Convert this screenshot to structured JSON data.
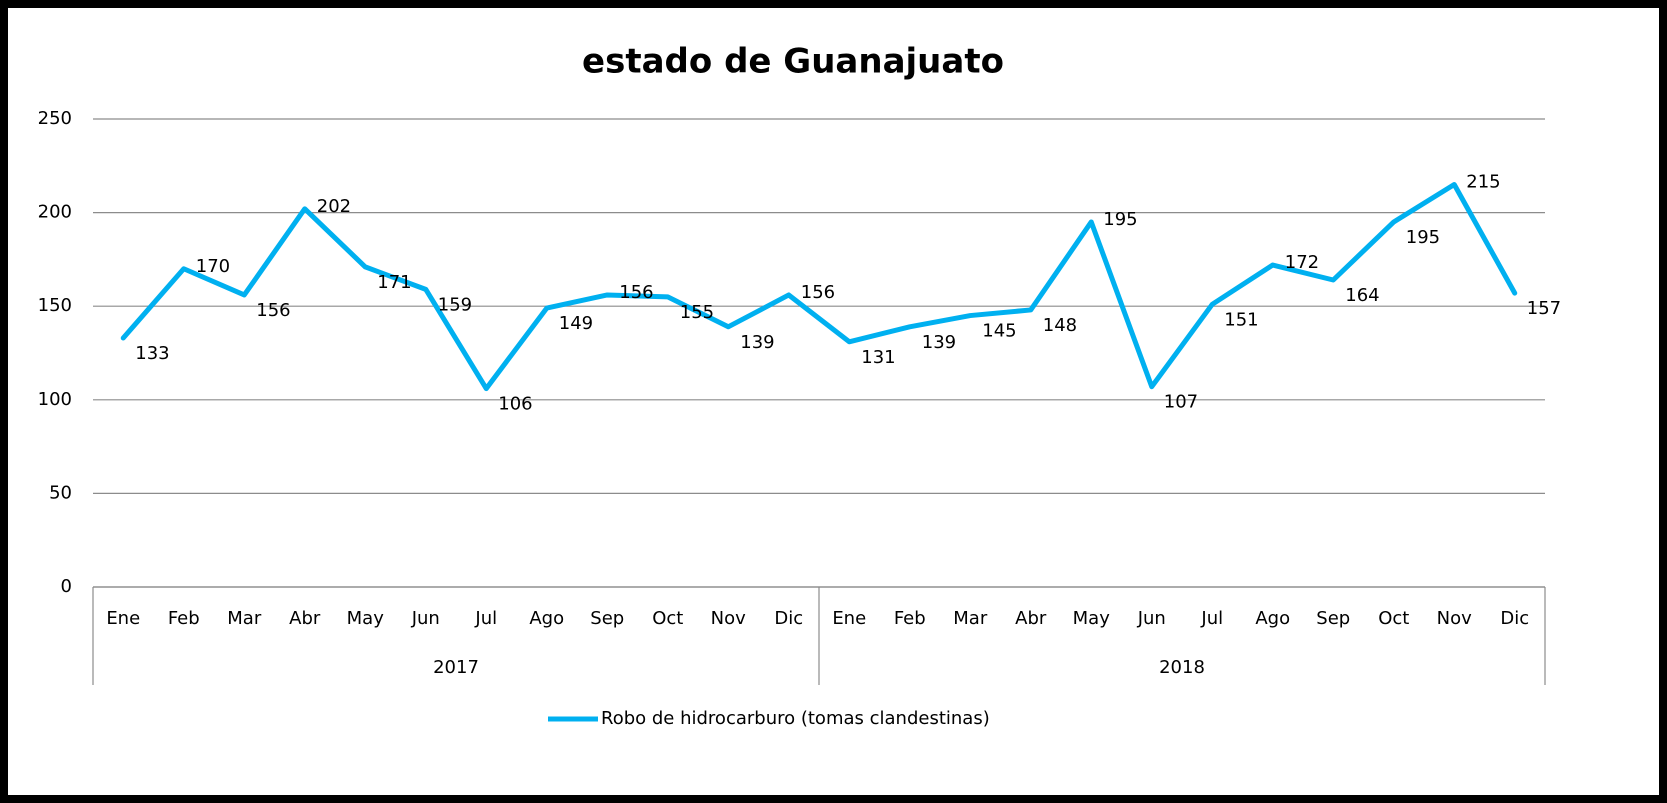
{
  "chart_data": {
    "type": "line",
    "title": "estado de Guanajuato",
    "categories": [
      "Ene",
      "Feb",
      "Mar",
      "Abr",
      "May",
      "Jun",
      "Jul",
      "Ago",
      "Sep",
      "Oct",
      "Nov",
      "Dic",
      "Ene",
      "Feb",
      "Mar",
      "Abr",
      "May",
      "Jun",
      "Jul",
      "Ago",
      "Sep",
      "Oct",
      "Nov",
      "Dic"
    ],
    "groups": [
      "2017",
      "2018"
    ],
    "series": [
      {
        "name": "Robo de hidrocarburo (tomas clandestinas)",
        "color": "#00b0f0",
        "values": [
          133,
          170,
          156,
          202,
          171,
          159,
          106,
          149,
          156,
          155,
          139,
          156,
          131,
          139,
          145,
          148,
          195,
          107,
          151,
          172,
          164,
          195,
          215,
          157
        ]
      }
    ],
    "ylim": [
      0,
      250
    ],
    "yticks": [
      0,
      50,
      100,
      150,
      200,
      250
    ],
    "grid": true,
    "legend": "bottom"
  }
}
